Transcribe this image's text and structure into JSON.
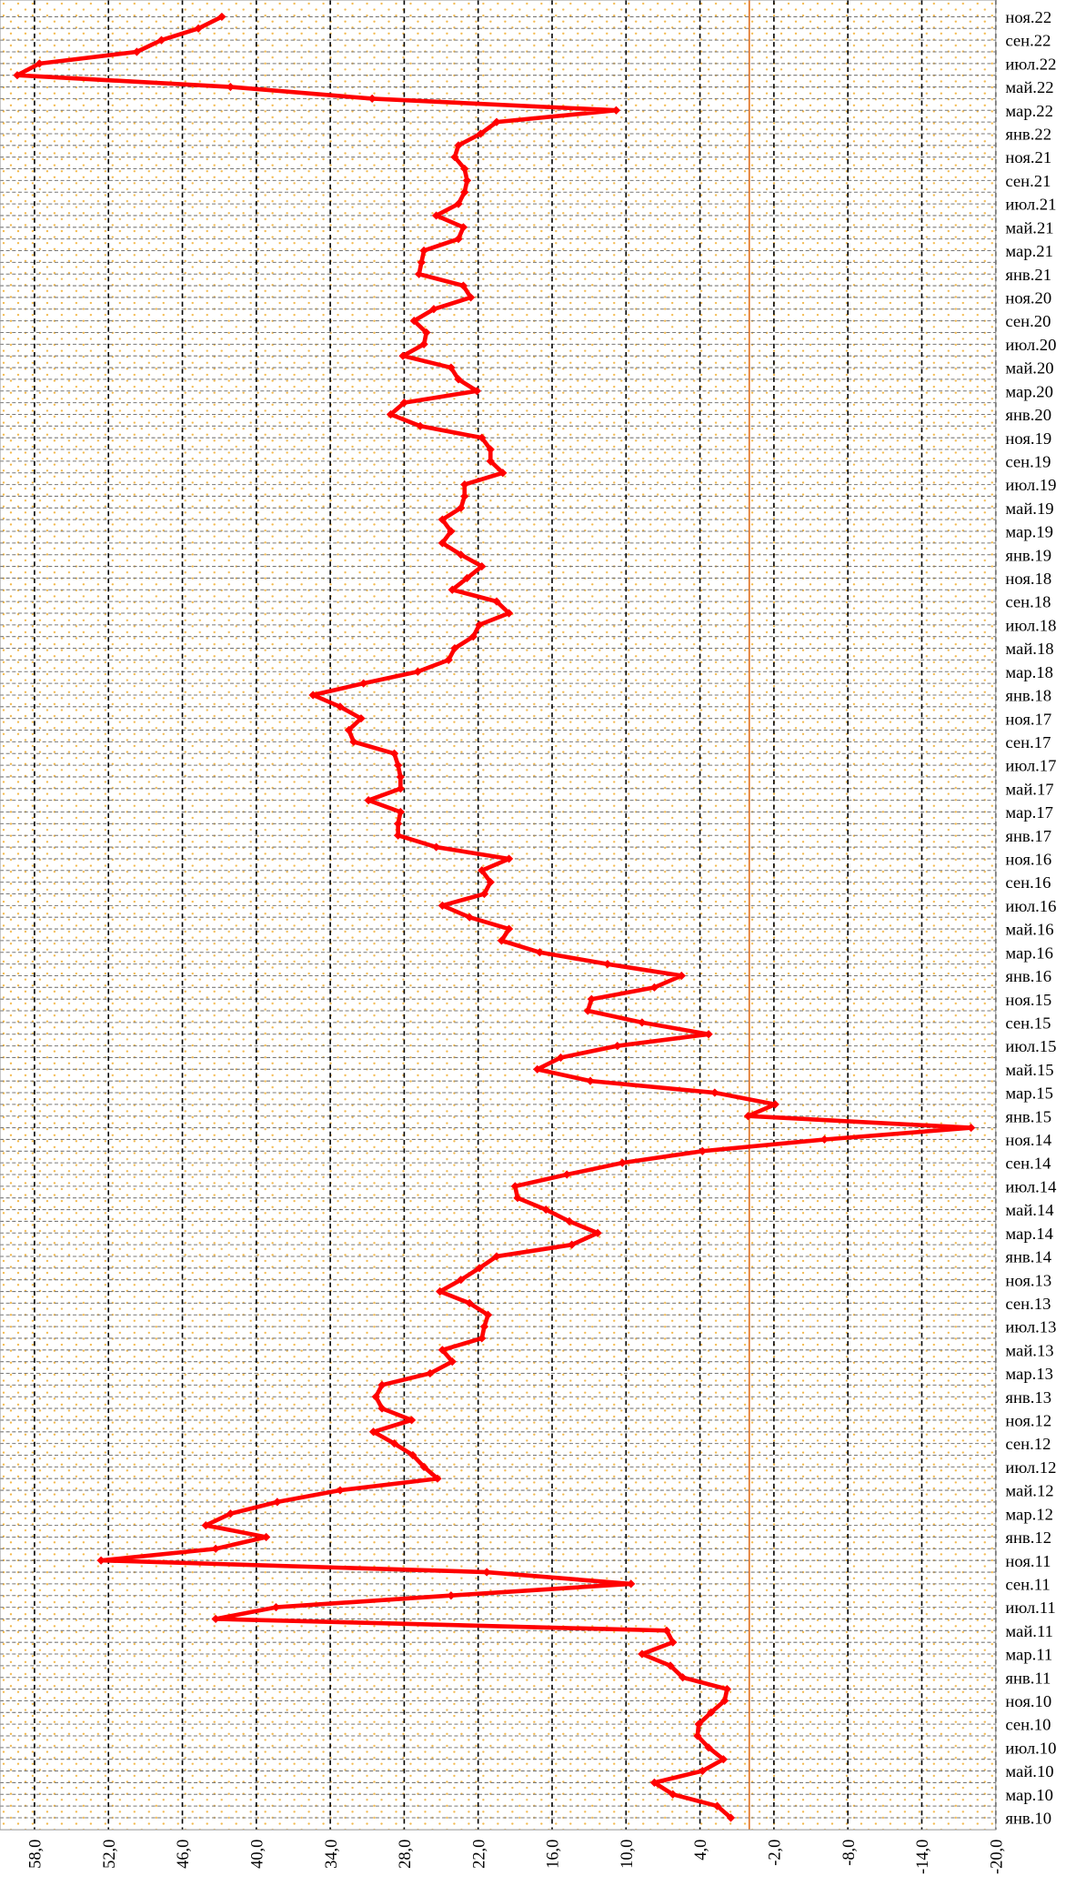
{
  "chart_data": {
    "type": "line",
    "orientation": "horizontal",
    "x_inverted": true,
    "categories": [
      "янв.10",
      null,
      "мар.10",
      null,
      "май.10",
      null,
      "июл.10",
      null,
      "сен.10",
      null,
      "ноя.10",
      null,
      "янв.11",
      null,
      "мар.11",
      null,
      "май.11",
      null,
      "июл.11",
      null,
      "сен.11",
      null,
      "ноя.11",
      null,
      "янв.12",
      null,
      "мар.12",
      null,
      "май.12",
      null,
      "июл.12",
      null,
      "сен.12",
      null,
      "ноя.12",
      null,
      "янв.13",
      null,
      "мар.13",
      null,
      "май.13",
      null,
      "июл.13",
      null,
      "сен.13",
      null,
      "ноя.13",
      null,
      "янв.14",
      null,
      "мар.14",
      null,
      "май.14",
      null,
      "июл.14",
      null,
      "сен.14",
      null,
      "ноя.14",
      null,
      "янв.15",
      null,
      "мар.15",
      null,
      "май.15",
      null,
      "июл.15",
      null,
      "сен.15",
      null,
      "ноя.15",
      null,
      "янв.16",
      null,
      "мар.16",
      null,
      "май.16",
      null,
      "июл.16",
      null,
      "сен.16",
      null,
      "ноя.16",
      null,
      "янв.17",
      null,
      "мар.17",
      null,
      "май.17",
      null,
      "июл.17",
      null,
      "сен.17",
      null,
      "ноя.17",
      null,
      "янв.18",
      null,
      "мар.18",
      null,
      "май.18",
      null,
      "июл.18",
      null,
      "сен.18",
      null,
      "ноя.18",
      null,
      "янв.19",
      null,
      "мар.19",
      null,
      "май.19",
      null,
      "июл.19",
      null,
      "сен.19",
      null,
      "ноя.19",
      null,
      "янв.20",
      null,
      "мар.20",
      null,
      "май.20",
      null,
      "июл.20",
      null,
      "сен.20",
      null,
      "ноя.20",
      null,
      "янв.21",
      null,
      "мар.21",
      null,
      "май.21",
      null,
      "июл.21",
      null,
      "сен.21",
      null,
      "ноя.21",
      null,
      "янв.22",
      null,
      "мар.22",
      null,
      "май.22",
      null,
      "июл.22",
      null,
      "сен.22",
      null,
      "ноя.22"
    ],
    "values": [
      1.5,
      2.6,
      6.2,
      7.7,
      3.8,
      2.1,
      3.3,
      4.2,
      4.1,
      3.1,
      2.0,
      1.8,
      5.4,
      6.4,
      8.7,
      6.2,
      6.7,
      43.3,
      38.4,
      24.2,
      9.6,
      21.3,
      52.6,
      43.3,
      39.2,
      44.1,
      42.1,
      38.3,
      33.2,
      25.3,
      26.4,
      27.3,
      28.8,
      30.5,
      27.4,
      29.8,
      30.3,
      29.8,
      25.9,
      24.1,
      24.9,
      21.7,
      21.5,
      21.2,
      22.7,
      25.1,
      23.4,
      21.9,
      20.5,
      14.4,
      12.3,
      14.6,
      16.5,
      18.8,
      19.0,
      14.8,
      10.3,
      3.8,
      -6.1,
      -18.0,
      0.1,
      -2.1,
      2.8,
      12.9,
      17.2,
      15.3,
      10.7,
      3.3,
      8.7,
      13.1,
      12.8,
      7.7,
      5.5,
      11.5,
      17.0,
      20.1,
      19.5,
      22.7,
      24.9,
      21.5,
      21.0,
      21.7,
      19.5,
      25.4,
      28.5,
      28.5,
      28.3,
      30.9,
      28.3,
      28.3,
      28.5,
      28.8,
      32.1,
      32.5,
      31.5,
      33.2,
      35.4,
      31.3,
      26.9,
      24.4,
      23.9,
      22.4,
      21.9,
      19.5,
      20.5,
      24.1,
      22.9,
      21.7,
      23.4,
      24.9,
      24.2,
      24.9,
      23.4,
      23.1,
      23.1,
      20.0,
      21.0,
      21.0,
      21.7,
      26.7,
      29.1,
      28.0,
      22.1,
      23.6,
      24.2,
      28.1,
      26.4,
      26.2,
      27.2,
      25.6,
      22.6,
      23.2,
      26.8,
      26.6,
      26.4,
      23.6,
      23.2,
      25.4,
      23.6,
      23.1,
      22.9,
      23.1,
      23.9,
      23.6,
      21.8,
      20.5,
      10.8,
      30.6,
      42.1,
      59.4,
      57.6,
      49.7,
      47.7,
      44.7,
      42.8
    ],
    "color": "#ff0000",
    "zero_line_color": "#e07020",
    "xlim": [
      -20,
      60.8
    ],
    "xticks": [
      {
        "value": 58,
        "label": "58,0"
      },
      {
        "value": 52,
        "label": "52,0"
      },
      {
        "value": 46,
        "label": "46,0"
      },
      {
        "value": 40,
        "label": "40,0"
      },
      {
        "value": 34,
        "label": "34,0"
      },
      {
        "value": 28,
        "label": "28,0"
      },
      {
        "value": 22,
        "label": "22,0"
      },
      {
        "value": 16,
        "label": "16,0"
      },
      {
        "value": 10,
        "label": "10,0"
      },
      {
        "value": 4,
        "label": "4,0"
      },
      {
        "value": -2,
        "label": "-2,0"
      },
      {
        "value": -8,
        "label": "-8,0"
      },
      {
        "value": -14,
        "label": "-14,0"
      },
      {
        "value": -20,
        "label": "-20,0"
      }
    ],
    "grid": true
  }
}
